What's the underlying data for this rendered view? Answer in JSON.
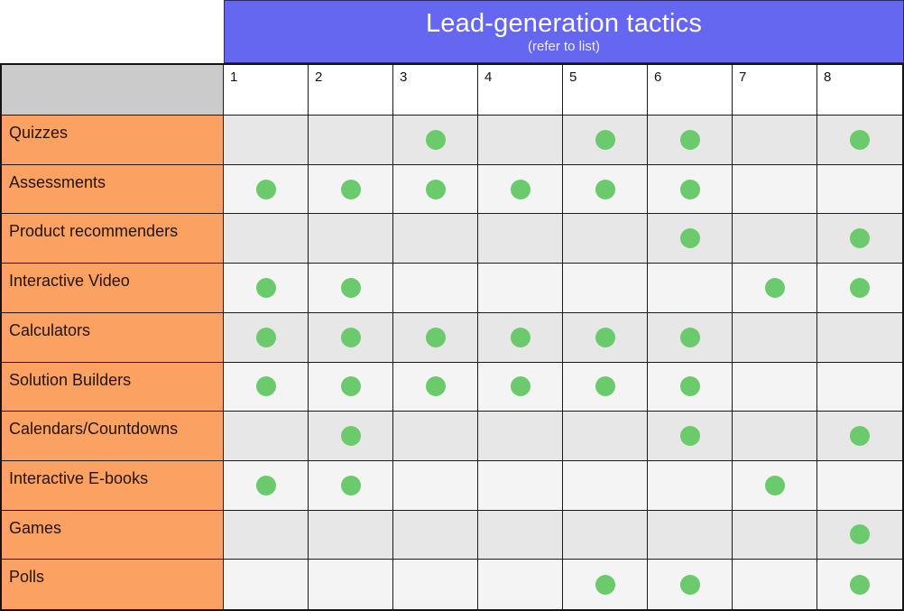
{
  "banner": {
    "title": "Lead-generation tactics",
    "subtitle": "(refer to list)"
  },
  "colors": {
    "banner_bg": "#6567f0",
    "banner_text": "#ffffff",
    "label_bg": "#fba263",
    "label_text": "#241309",
    "corner_bg": "#cbcbcb",
    "header_bg": "#ffffff",
    "row_dark": "#e7e7e7",
    "row_light": "#f4f4f4",
    "dot": "#6bca6b",
    "grid_line": "#1a1a1a"
  },
  "chart_data": {
    "type": "table",
    "title": "Lead-generation tactics",
    "subtitle": "(refer to list)",
    "mark_symbol": "green-dot",
    "columns": [
      "1",
      "2",
      "3",
      "4",
      "5",
      "6",
      "7",
      "8"
    ],
    "rows": [
      {
        "label": "Quizzes",
        "marks": [
          3,
          5,
          6,
          8
        ]
      },
      {
        "label": "Assessments",
        "marks": [
          1,
          2,
          3,
          4,
          5,
          6
        ]
      },
      {
        "label": "Product recommenders",
        "marks": [
          6,
          8
        ]
      },
      {
        "label": "Interactive Video",
        "marks": [
          1,
          2,
          7,
          8
        ]
      },
      {
        "label": "Calculators",
        "marks": [
          1,
          2,
          3,
          4,
          5,
          6
        ]
      },
      {
        "label": "Solution Builders",
        "marks": [
          1,
          2,
          3,
          4,
          5,
          6
        ]
      },
      {
        "label": "Calendars/Countdowns",
        "marks": [
          2,
          6,
          8
        ]
      },
      {
        "label": "Interactive E-books",
        "marks": [
          1,
          2,
          7
        ]
      },
      {
        "label": "Games",
        "marks": [
          8
        ]
      },
      {
        "label": "Polls",
        "marks": [
          5,
          6,
          8
        ]
      }
    ]
  }
}
